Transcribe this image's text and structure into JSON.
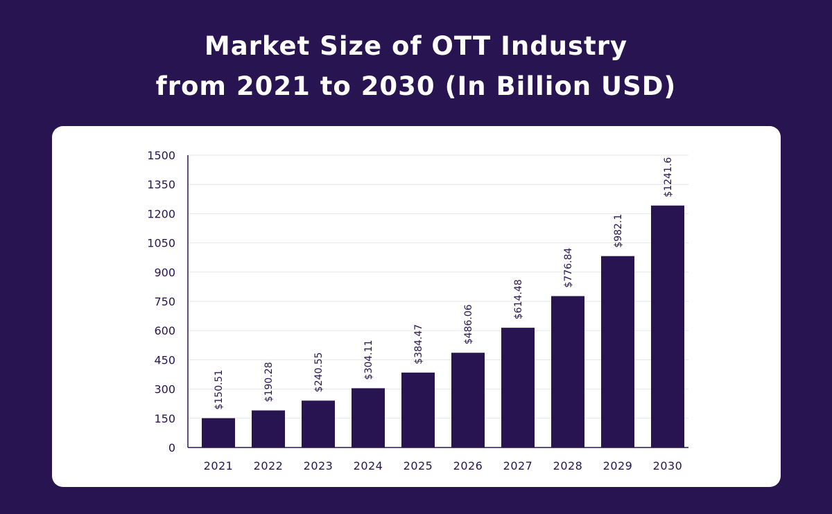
{
  "chart_data": {
    "type": "bar",
    "title_lines": [
      "Market Size of OTT Industry",
      "from 2021 to 2030 (In Billion USD)"
    ],
    "categories": [
      "2021",
      "2022",
      "2023",
      "2024",
      "2025",
      "2026",
      "2027",
      "2028",
      "2029",
      "2030"
    ],
    "values": [
      150.51,
      190.28,
      240.55,
      304.11,
      384.47,
      486.06,
      614.48,
      776.84,
      982.1,
      1241.6
    ],
    "data_labels": [
      "$150.51",
      "$190.28",
      "$240.55",
      "$304.11",
      "$384.47",
      "$486.06",
      "$614.48",
      "$776.84",
      "$982.1",
      "$1241.6"
    ],
    "y_ticks": [
      0,
      150,
      300,
      450,
      600,
      750,
      900,
      1050,
      1200,
      1350,
      1500
    ],
    "ylim": [
      0,
      1500
    ],
    "xlabel": "",
    "ylabel": "",
    "grid": true,
    "colors": {
      "background": "#281450",
      "card": "#ffffff",
      "bar": "#281450",
      "grid": "#e6e6e6",
      "axis": "#281450"
    }
  }
}
